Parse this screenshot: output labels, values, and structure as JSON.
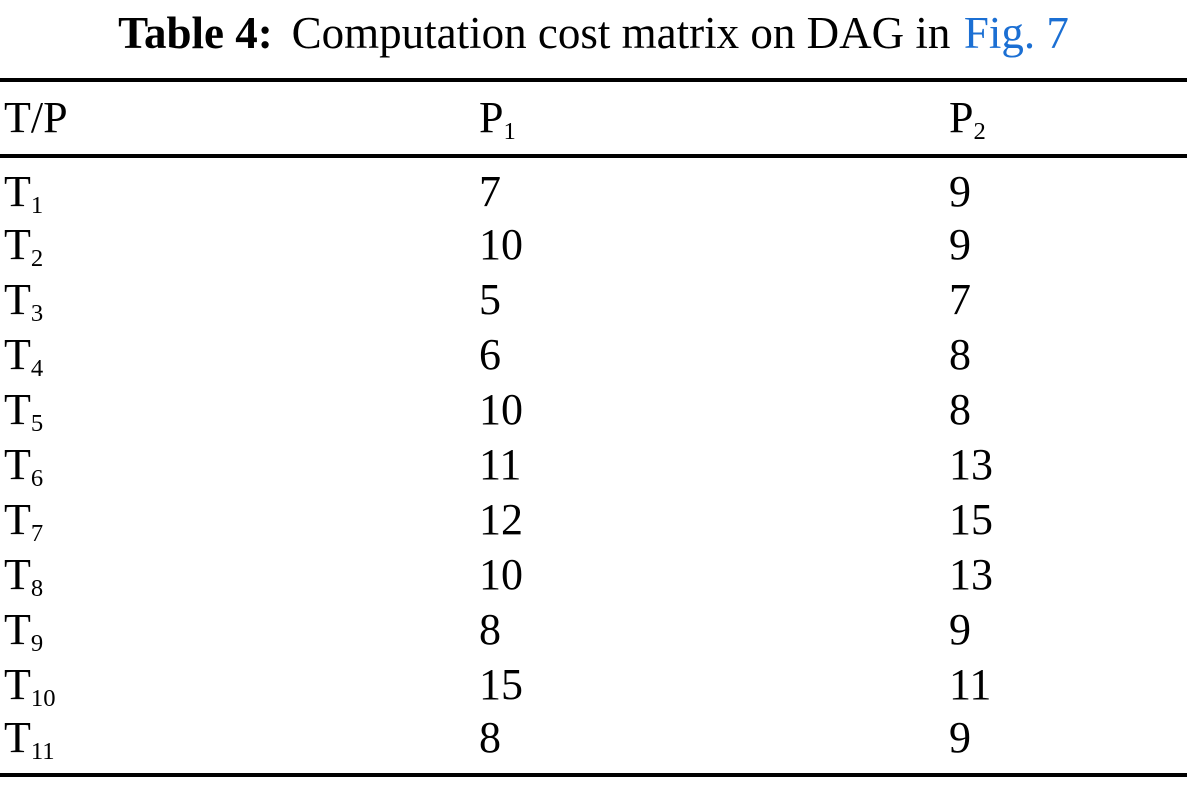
{
  "caption": {
    "label": "Table 4:",
    "text": "Computation cost matrix on DAG in",
    "link_text": "Fig. 7"
  },
  "table": {
    "header": {
      "col0": "T/P",
      "col1_base": "P",
      "col1_sub": "1",
      "col2_base": "P",
      "col2_sub": "2"
    },
    "rows": [
      {
        "task_base": "T",
        "task_sub": "1",
        "p1": "7",
        "p2": "9"
      },
      {
        "task_base": "T",
        "task_sub": "2",
        "p1": "10",
        "p2": "9"
      },
      {
        "task_base": "T",
        "task_sub": "3",
        "p1": "5",
        "p2": "7"
      },
      {
        "task_base": "T",
        "task_sub": "4",
        "p1": "6",
        "p2": "8"
      },
      {
        "task_base": "T",
        "task_sub": "5",
        "p1": "10",
        "p2": "8"
      },
      {
        "task_base": "T",
        "task_sub": "6",
        "p1": "11",
        "p2": "13"
      },
      {
        "task_base": "T",
        "task_sub": "7",
        "p1": "12",
        "p2": "15"
      },
      {
        "task_base": "T",
        "task_sub": "8",
        "p1": "10",
        "p2": "13"
      },
      {
        "task_base": "T",
        "task_sub": "9",
        "p1": "8",
        "p2": "9"
      },
      {
        "task_base": "T",
        "task_sub": "10",
        "p1": "15",
        "p2": "11"
      },
      {
        "task_base": "T",
        "task_sub": "11",
        "p1": "8",
        "p2": "9"
      }
    ]
  },
  "colors": {
    "text": "#000000",
    "link": "#1b6fd3",
    "rule": "#000000",
    "background": "#ffffff"
  }
}
